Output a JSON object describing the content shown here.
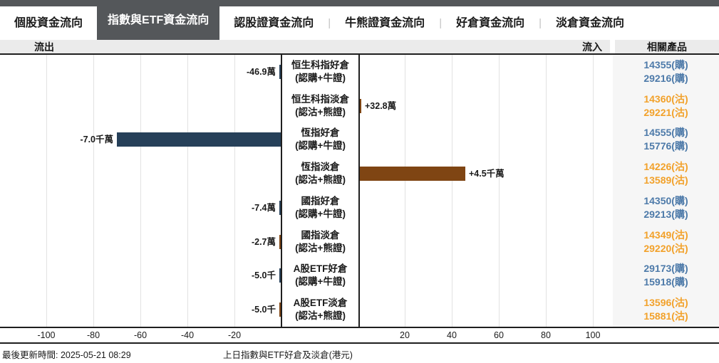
{
  "tabs": [
    {
      "label": "個股資金流向",
      "selected": false
    },
    {
      "label": "指數與ETF資金流向",
      "selected": true
    },
    {
      "label": "認股證資金流向",
      "selected": false
    },
    {
      "label": "牛熊證資金流向",
      "selected": false
    },
    {
      "label": "好倉資金流向",
      "selected": false
    },
    {
      "label": "淡倉資金流向",
      "selected": false
    }
  ],
  "subheader": {
    "outflow_label": "流出",
    "inflow_label": "流入",
    "related_products_header": "相關產品"
  },
  "chart_data": {
    "type": "bar",
    "orientation": "horizontal-diverging",
    "title": "上日指數與ETF好倉及淡倉(港元)",
    "axis_unit_millions": true,
    "xlim": [
      -110,
      110
    ],
    "x_ticks_negative": [
      "-100",
      "-80",
      "-60",
      "-40",
      "-20"
    ],
    "x_ticks_positive": [
      "20",
      "40",
      "60",
      "80",
      "100"
    ],
    "grid": true,
    "categories": [
      {
        "label_line1": "恒生科指好倉",
        "label_line2": "(認購+牛證)",
        "value_label": "-46.9萬",
        "value_millions": -0.469,
        "side": "long",
        "products": [
          {
            "code": "14355(購)",
            "kind": "call"
          },
          {
            "code": "29216(購)",
            "kind": "call"
          }
        ]
      },
      {
        "label_line1": "恒生科指淡倉",
        "label_line2": "(認沽+熊證)",
        "value_label": "+32.8萬",
        "value_millions": 0.328,
        "side": "short",
        "products": [
          {
            "code": "14360(沽)",
            "kind": "put"
          },
          {
            "code": "29221(沽)",
            "kind": "put"
          }
        ]
      },
      {
        "label_line1": "恆指好倉",
        "label_line2": "(認購+牛證)",
        "value_label": "-7.0千萬",
        "value_millions": -70,
        "side": "long",
        "products": [
          {
            "code": "14555(購)",
            "kind": "call"
          },
          {
            "code": "15776(購)",
            "kind": "call"
          }
        ]
      },
      {
        "label_line1": "恆指淡倉",
        "label_line2": "(認沽+熊證)",
        "value_label": "+4.5千萬",
        "value_millions": 45,
        "side": "short",
        "products": [
          {
            "code": "14226(沽)",
            "kind": "put"
          },
          {
            "code": "13589(沽)",
            "kind": "put"
          }
        ]
      },
      {
        "label_line1": "國指好倉",
        "label_line2": "(認購+牛證)",
        "value_label": "-7.4萬",
        "value_millions": -0.074,
        "side": "long",
        "products": [
          {
            "code": "14350(購)",
            "kind": "call"
          },
          {
            "code": "29213(購)",
            "kind": "call"
          }
        ]
      },
      {
        "label_line1": "國指淡倉",
        "label_line2": "(認沽+熊證)",
        "value_label": "-2.7萬",
        "value_millions": -0.027,
        "side": "short",
        "products": [
          {
            "code": "14349(沽)",
            "kind": "put"
          },
          {
            "code": "29220(沽)",
            "kind": "put"
          }
        ]
      },
      {
        "label_line1": "A股ETF好倉",
        "label_line2": "(認購+牛證)",
        "value_label": "-5.0千",
        "value_millions": -0.005,
        "side": "long",
        "products": [
          {
            "code": "29173(購)",
            "kind": "call"
          },
          {
            "code": "15918(購)",
            "kind": "call"
          }
        ]
      },
      {
        "label_line1": "A股ETF淡倉",
        "label_line2": "(認沽+熊證)",
        "value_label": "-5.0千",
        "value_millions": -0.005,
        "side": "short",
        "products": [
          {
            "code": "13596(沽)",
            "kind": "put"
          },
          {
            "code": "15881(沽)",
            "kind": "put"
          }
        ]
      }
    ]
  },
  "footer": {
    "last_updated": "最後更新時間: 2025-05-21 08:29",
    "chart_title": "上日指數與ETF好倉及淡倉(港元)"
  },
  "colors": {
    "accent_dark": "#54575a",
    "bar_long_navy": "#264059",
    "bar_short_brown": "#7f4513",
    "call_blue": "#4d7aa9",
    "put_orange": "#f2a12a"
  }
}
